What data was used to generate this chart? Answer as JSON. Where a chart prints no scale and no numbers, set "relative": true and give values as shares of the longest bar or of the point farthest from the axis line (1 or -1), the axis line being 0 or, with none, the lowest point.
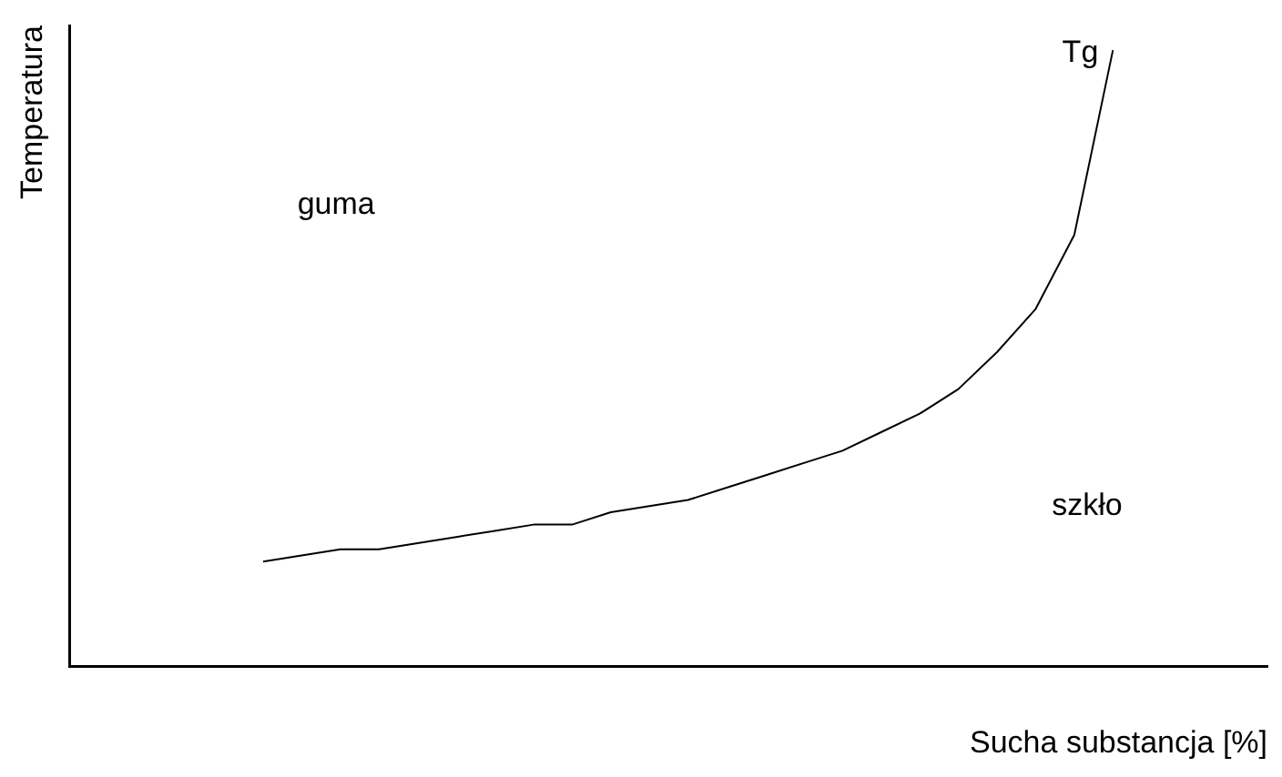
{
  "chart_data": {
    "type": "line",
    "xlabel": "Sucha substancja [%]",
    "ylabel": "Temperatura",
    "relative": true,
    "grid": false,
    "legend": false,
    "marker": "none",
    "line_style": "solid",
    "categories": [
      null,
      null,
      null,
      null,
      null,
      null,
      null,
      null,
      null,
      null,
      null,
      null,
      null,
      null,
      null,
      null,
      null,
      null,
      null,
      null,
      null,
      null,
      null,
      null,
      null,
      null,
      null,
      null,
      null,
      null,
      null,
      null
    ],
    "series": [
      {
        "name": "Tg",
        "color": "#000000",
        "values": [
          null,
          null,
          null,
          null,
          null,
          0.17,
          0.18,
          0.19,
          0.19,
          0.2,
          0.21,
          0.22,
          0.23,
          0.23,
          0.25,
          0.26,
          0.27,
          0.29,
          0.31,
          0.33,
          0.35,
          0.38,
          0.41,
          0.45,
          0.51,
          0.58,
          0.7,
          1,
          null,
          null,
          null,
          null
        ]
      }
    ],
    "annotations": [
      "guma",
      "szkło"
    ]
  }
}
